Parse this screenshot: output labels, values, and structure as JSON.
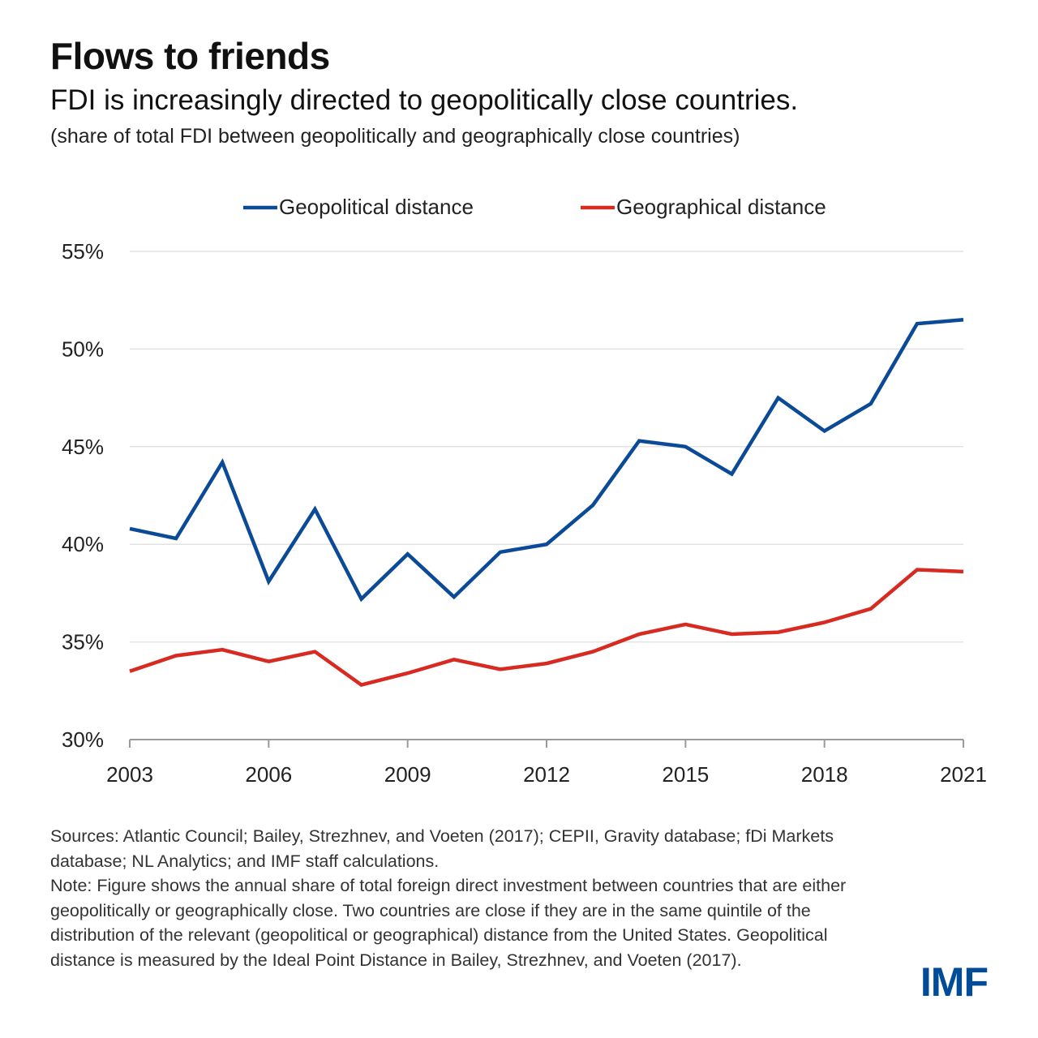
{
  "header": {
    "title": "Flows to friends",
    "subtitle": "FDI is increasingly directed to geopolitically close countries.",
    "units": "(share of total FDI between geopolitically and geographically close countries)"
  },
  "footer": {
    "sources": "Sources: Atlantic Council; Bailey, Strezhnev, and Voeten (2017); CEPII, Gravity database; fDi Markets database; NL Analytics; and IMF staff calculations.",
    "note": "Note: Figure shows the annual share of total foreign direct investment between countries that are either geopolitically or geographically close. Two countries are close if they are in the same quintile of the distribution of the relevant (geopolitical or geographical) distance from the United States. Geopolitical distance is measured by the Ideal Point Distance in Bailey, Strezhnev, and Voeten (2017).",
    "logo": "IMF"
  },
  "colors": {
    "geopolitical": "#0a4a97",
    "geographical": "#d72a21",
    "grid": "#e3e3e3",
    "axis": "#9a9a9a",
    "brand": "#004c97"
  },
  "chart_data": {
    "type": "line",
    "title": "Flows to friends",
    "xlabel": "",
    "ylabel": "",
    "x": [
      2003,
      2004,
      2005,
      2006,
      2007,
      2008,
      2009,
      2010,
      2011,
      2012,
      2013,
      2014,
      2015,
      2016,
      2017,
      2018,
      2019,
      2020,
      2021
    ],
    "xticks": [
      2003,
      2006,
      2009,
      2012,
      2015,
      2018,
      2021
    ],
    "yticks": [
      30,
      35,
      40,
      45,
      50,
      55
    ],
    "ytick_labels": [
      "30%",
      "35%",
      "40%",
      "45%",
      "50%",
      "55%"
    ],
    "ylim": [
      30,
      55
    ],
    "xlim": [
      2003,
      2021
    ],
    "grid": true,
    "legend_position": "top",
    "series": [
      {
        "name": "Geopolitical distance",
        "color": "#0a4a97",
        "values": [
          40.8,
          40.3,
          44.2,
          38.1,
          41.8,
          37.2,
          39.5,
          37.3,
          39.6,
          40.0,
          42.0,
          45.3,
          45.0,
          43.6,
          47.5,
          45.8,
          47.2,
          51.3,
          51.5
        ]
      },
      {
        "name": "Geographical distance",
        "color": "#d72a21",
        "values": [
          33.5,
          34.3,
          34.6,
          34.0,
          34.5,
          32.8,
          33.4,
          34.1,
          33.6,
          33.9,
          34.5,
          35.4,
          35.9,
          35.4,
          35.5,
          36.0,
          36.7,
          38.7,
          38.6
        ]
      }
    ]
  }
}
